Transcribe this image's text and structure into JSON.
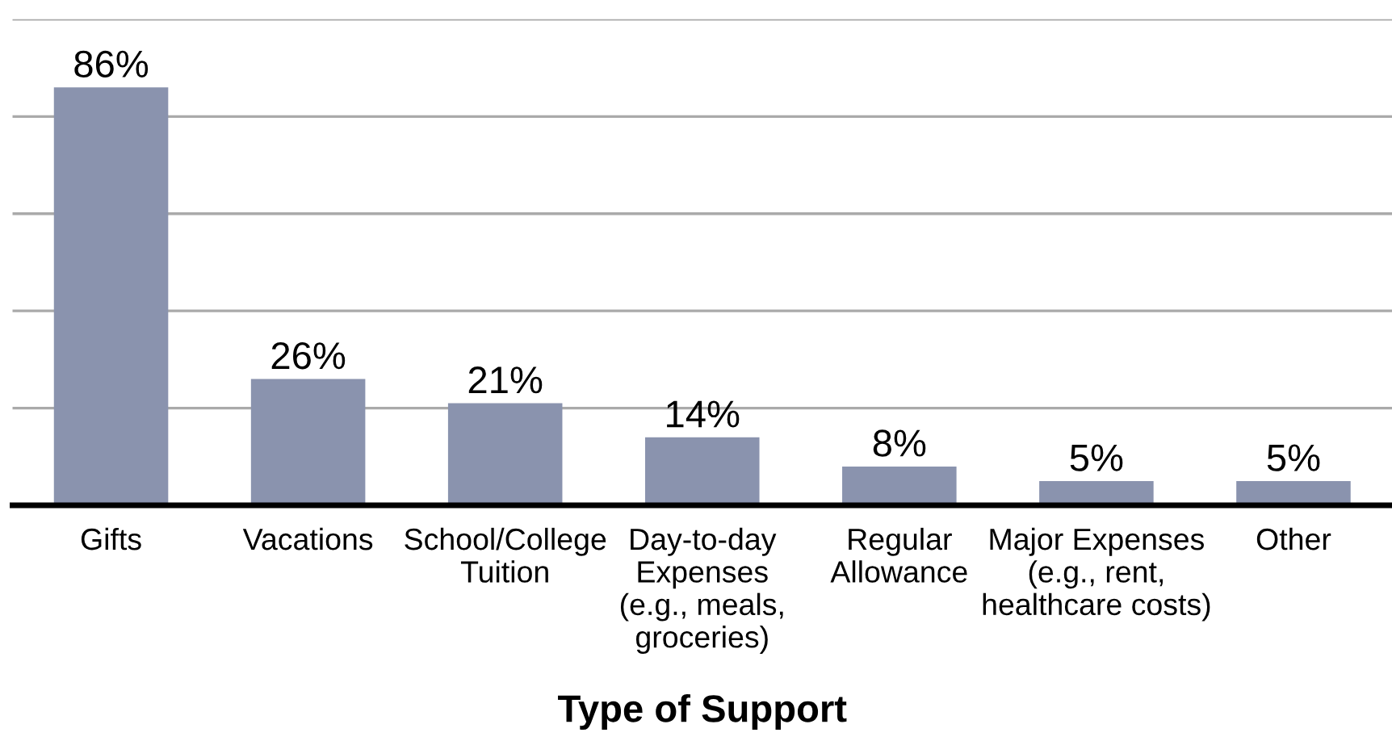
{
  "chart_data": {
    "type": "bar",
    "xlabel": "Type of Support",
    "categories": [
      "Gifts",
      "Vacations",
      "School/College\nTuition",
      "Day-to-day\nExpenses\n(e.g., meals,\ngroceries)",
      "Regular\nAllowance",
      "Major Expenses\n(e.g., rent,\nhealthcare costs)",
      "Other"
    ],
    "values": [
      86,
      26,
      21,
      14,
      8,
      5,
      5
    ],
    "value_labels": [
      "86%",
      "26%",
      "21%",
      "14%",
      "8%",
      "5%",
      "5%"
    ],
    "color": "#8a93ae",
    "ylim": [
      0,
      100
    ],
    "yticks": [
      {
        "value": 0,
        "label": null
      },
      {
        "value": 20,
        "label": null
      },
      {
        "value": 40,
        "label": null
      },
      {
        "value": 60,
        "label": null
      },
      {
        "value": 80,
        "label": null
      },
      {
        "value": 100,
        "label": null
      }
    ],
    "grid": "y",
    "tick_labels": "x"
  }
}
